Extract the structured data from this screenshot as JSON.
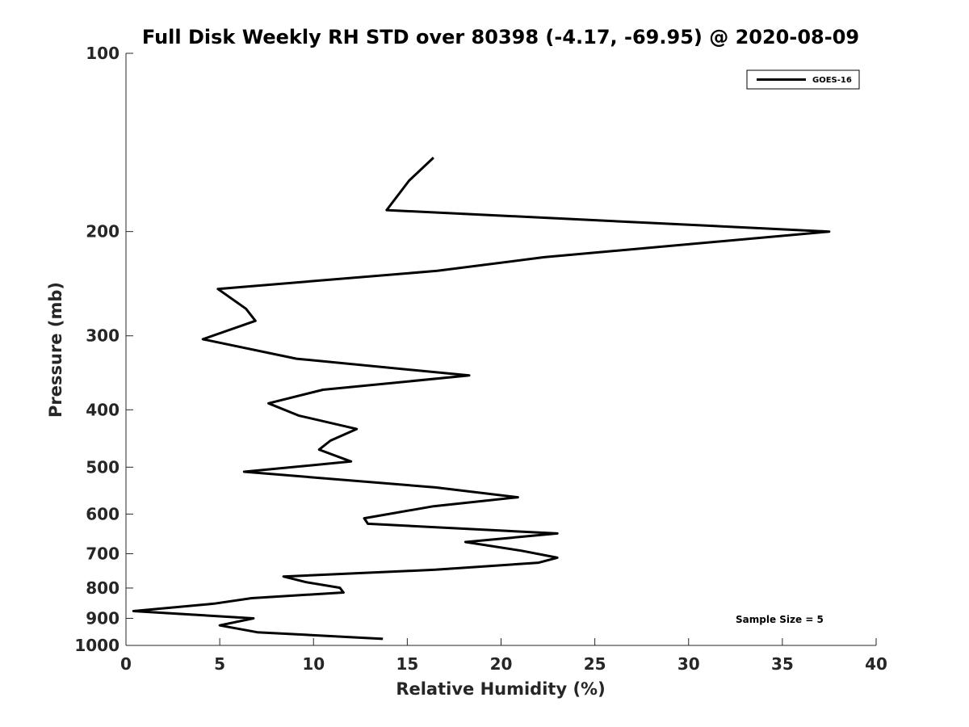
{
  "chart_data": {
    "type": "line",
    "title": "Full Disk Weekly RH STD over 80398 (-4.17, -69.95) @ 2020-08-09",
    "xlabel": "Relative Humidity (%)",
    "ylabel": "Pressure (mb)",
    "xlim": [
      0,
      40
    ],
    "ylim": [
      100,
      1000
    ],
    "y_scale": "log",
    "y_reversed": true,
    "grid": false,
    "x_ticks": [
      "0",
      "5",
      "10",
      "15",
      "20",
      "25",
      "30",
      "35",
      "40"
    ],
    "y_ticks": [
      "100",
      "200",
      "300",
      "400",
      "500",
      "600",
      "700",
      "800",
      "900",
      "1000"
    ],
    "legend": {
      "location": "top-right",
      "entries": [
        "GOES-16"
      ]
    },
    "annotation": "Sample Size = 5",
    "series": [
      {
        "name": "GOES-16",
        "color": "#000000",
        "x": [
          16.4,
          15.1,
          13.9,
          37.5,
          22.3,
          16.6,
          4.9,
          6.4,
          6.9,
          4.1,
          9.1,
          18.3,
          10.5,
          7.6,
          9.2,
          12.3,
          10.9,
          10.3,
          12.0,
          6.3,
          16.5,
          20.9,
          16.4,
          12.7,
          12.9,
          23.0,
          18.1,
          21.1,
          23.0,
          22.0,
          16.5,
          8.4,
          9.6,
          11.4,
          11.6,
          6.7,
          4.7,
          0.4,
          6.8,
          5.0,
          7.0,
          13.7
        ],
        "y": [
          150,
          164,
          184,
          200,
          221,
          233,
          250,
          270,
          283,
          304,
          328,
          350,
          370,
          390,
          409,
          431,
          451,
          467,
          489,
          509,
          541,
          562,
          582,
          610,
          623,
          647,
          669,
          692,
          711,
          725,
          745,
          765,
          782,
          799,
          814,
          832,
          850,
          875,
          900,
          925,
          950,
          975
        ]
      }
    ]
  }
}
